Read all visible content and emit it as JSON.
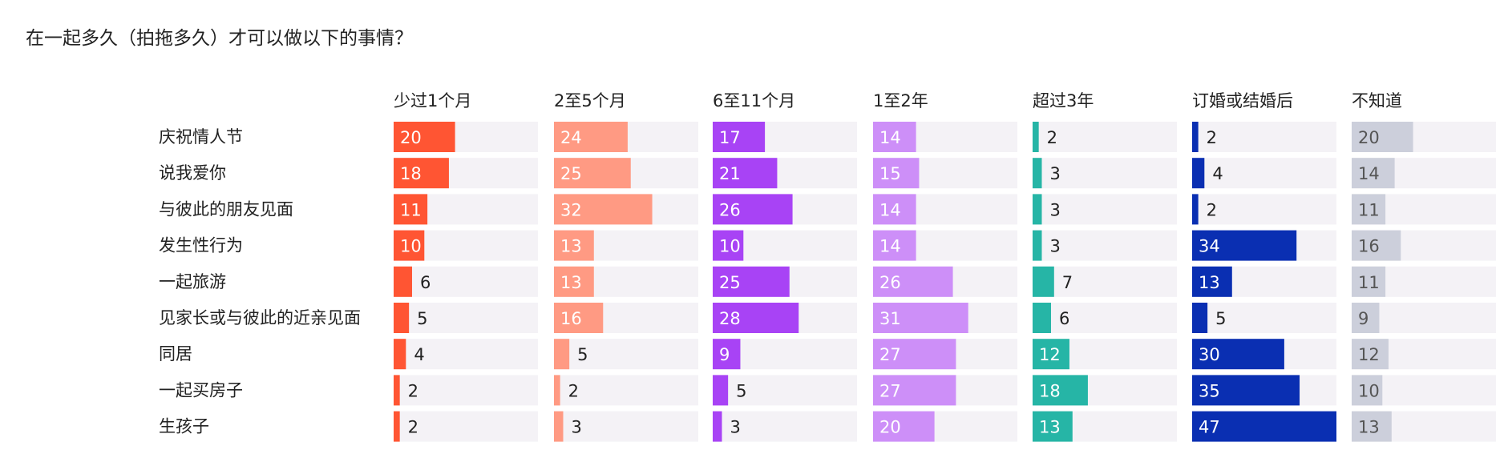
{
  "title": "在一起多久（拍拖多久）才可以做以下的事情？",
  "chart_data": {
    "type": "bar",
    "title": "在一起多久（拍拖多久）才可以做以下的事情？",
    "categories": [
      "庆祝情人节",
      "说我爱你",
      "与彼此的朋友见面",
      "发生性行为",
      "一起旅游",
      "见家长或与彼此的近亲见面",
      "同居",
      "一起买房子",
      "生孩子"
    ],
    "series": [
      {
        "name": "少过1个月",
        "color": "#FF5533",
        "values": [
          20,
          18,
          11,
          10,
          6,
          5,
          4,
          2,
          2
        ]
      },
      {
        "name": "2至5个月",
        "color": "#FF9A83",
        "values": [
          24,
          25,
          32,
          13,
          13,
          16,
          5,
          2,
          3
        ]
      },
      {
        "name": "6至11个月",
        "color": "#A843F5",
        "values": [
          17,
          21,
          26,
          10,
          25,
          28,
          9,
          5,
          3
        ]
      },
      {
        "name": "1至2年",
        "color": "#CD8FF8",
        "values": [
          14,
          15,
          14,
          14,
          26,
          31,
          27,
          27,
          20
        ]
      },
      {
        "name": "超过3年",
        "color": "#26B5A6",
        "values": [
          2,
          3,
          3,
          3,
          7,
          6,
          12,
          18,
          13
        ]
      },
      {
        "name": "订婚或结婚后",
        "color": "#0A2FB2",
        "values": [
          2,
          4,
          2,
          34,
          13,
          5,
          30,
          35,
          47
        ]
      },
      {
        "name": "不知道",
        "color": "#CCCFDB",
        "values": [
          20,
          14,
          11,
          16,
          11,
          9,
          12,
          10,
          13
        ]
      }
    ],
    "xlim": [
      0,
      47
    ],
    "track_color": "#F4F2F6",
    "grid": false,
    "legend": "column headers"
  }
}
